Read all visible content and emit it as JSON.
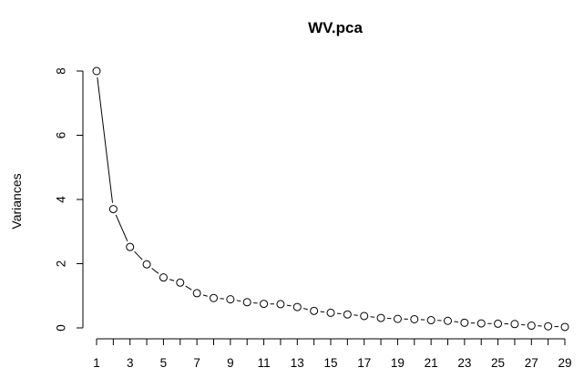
{
  "chart_data": {
    "type": "line",
    "title": "WV.pca",
    "xlabel": "",
    "ylabel": "Variances",
    "x": [
      1,
      2,
      3,
      4,
      5,
      6,
      7,
      8,
      9,
      10,
      11,
      12,
      13,
      14,
      15,
      16,
      17,
      18,
      19,
      20,
      21,
      22,
      23,
      24,
      25,
      26,
      27,
      28,
      29
    ],
    "values": [
      8.0,
      3.7,
      2.52,
      1.98,
      1.57,
      1.41,
      1.08,
      0.93,
      0.89,
      0.8,
      0.75,
      0.74,
      0.65,
      0.53,
      0.47,
      0.42,
      0.37,
      0.31,
      0.28,
      0.27,
      0.24,
      0.22,
      0.16,
      0.14,
      0.13,
      0.12,
      0.07,
      0.05,
      0.03
    ],
    "xticks": [
      "1",
      "3",
      "5",
      "7",
      "9",
      "11",
      "13",
      "15",
      "17",
      "19",
      "21",
      "23",
      "25",
      "27",
      "29"
    ],
    "yticks": [
      "0",
      "2",
      "4",
      "6",
      "8"
    ],
    "xlim": [
      0.5,
      29.5
    ],
    "ylim": [
      0,
      8
    ],
    "grid": false,
    "markers": "open circles",
    "colors": {
      "line": "#000000",
      "marker_fill": "#ffffff",
      "background": "#ffffff"
    }
  }
}
